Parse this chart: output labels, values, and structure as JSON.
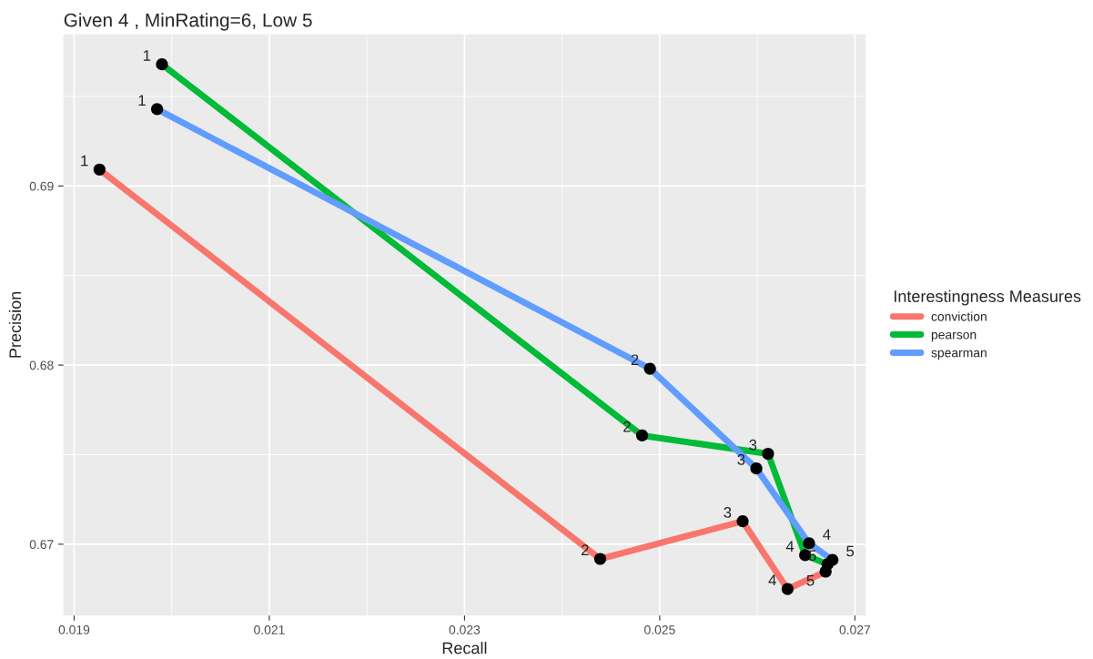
{
  "chart_data": {
    "type": "line",
    "title": "Given 4 , MinRating=6, Low 5",
    "xlabel": "Recall",
    "ylabel": "Precision",
    "legend_title": "Interestingness Measures",
    "series": [
      {
        "name": "conviction",
        "color": "#f8766d",
        "x": [
          0.01926,
          0.02439,
          0.02585,
          0.02631,
          0.0267
        ],
        "values": [
          0.69092,
          0.66918,
          0.67128,
          0.6675,
          0.66847
        ]
      },
      {
        "name": "pearson",
        "color": "#00ba38",
        "x": [
          0.0199,
          0.02482,
          0.02611,
          0.02649,
          0.02672
        ],
        "values": [
          0.69679,
          0.67607,
          0.67505,
          0.66939,
          0.66888
        ]
      },
      {
        "name": "spearman",
        "color": "#619cff",
        "x": [
          0.01985,
          0.0249,
          0.02599,
          0.02653,
          0.02677
        ],
        "values": [
          0.69429,
          0.6798,
          0.67423,
          0.67005,
          0.66912
        ]
      }
    ],
    "annotations": [
      {
        "text": "1",
        "x": 0.01926,
        "y": 0.69092
      },
      {
        "text": "2",
        "x": 0.02439,
        "y": 0.66918
      },
      {
        "text": "3",
        "x": 0.02585,
        "y": 0.67128
      },
      {
        "text": "4",
        "x": 0.02631,
        "y": 0.6675
      },
      {
        "text": "5",
        "x": 0.0267,
        "y": 0.66847
      },
      {
        "text": "1",
        "x": 0.0199,
        "y": 0.69679
      },
      {
        "text": "2",
        "x": 0.02482,
        "y": 0.67607
      },
      {
        "text": "3",
        "x": 0.02611,
        "y": 0.67505
      },
      {
        "text": "4",
        "x": 0.02649,
        "y": 0.66939
      },
      {
        "text": "5",
        "x": 0.02672,
        "y": 0.66888
      },
      {
        "text": "1",
        "x": 0.01985,
        "y": 0.69429
      },
      {
        "text": "2",
        "x": 0.0249,
        "y": 0.6798
      },
      {
        "text": "3",
        "x": 0.02599,
        "y": 0.67423
      },
      {
        "text": "4",
        "x": 0.02653,
        "y": 0.67005
      },
      {
        "text": "5",
        "x": 0.02677,
        "y": 0.66912
      }
    ],
    "xlim": [
      0.01889,
      0.02711
    ],
    "ylim": [
      0.66602,
      0.69847
    ],
    "xticks": [
      0.019,
      0.021,
      0.023,
      0.025,
      0.027
    ],
    "yticks": [
      0.67,
      0.68,
      0.69
    ],
    "grid": true,
    "legend": "right",
    "marker": "circle",
    "line_style": "solid"
  }
}
